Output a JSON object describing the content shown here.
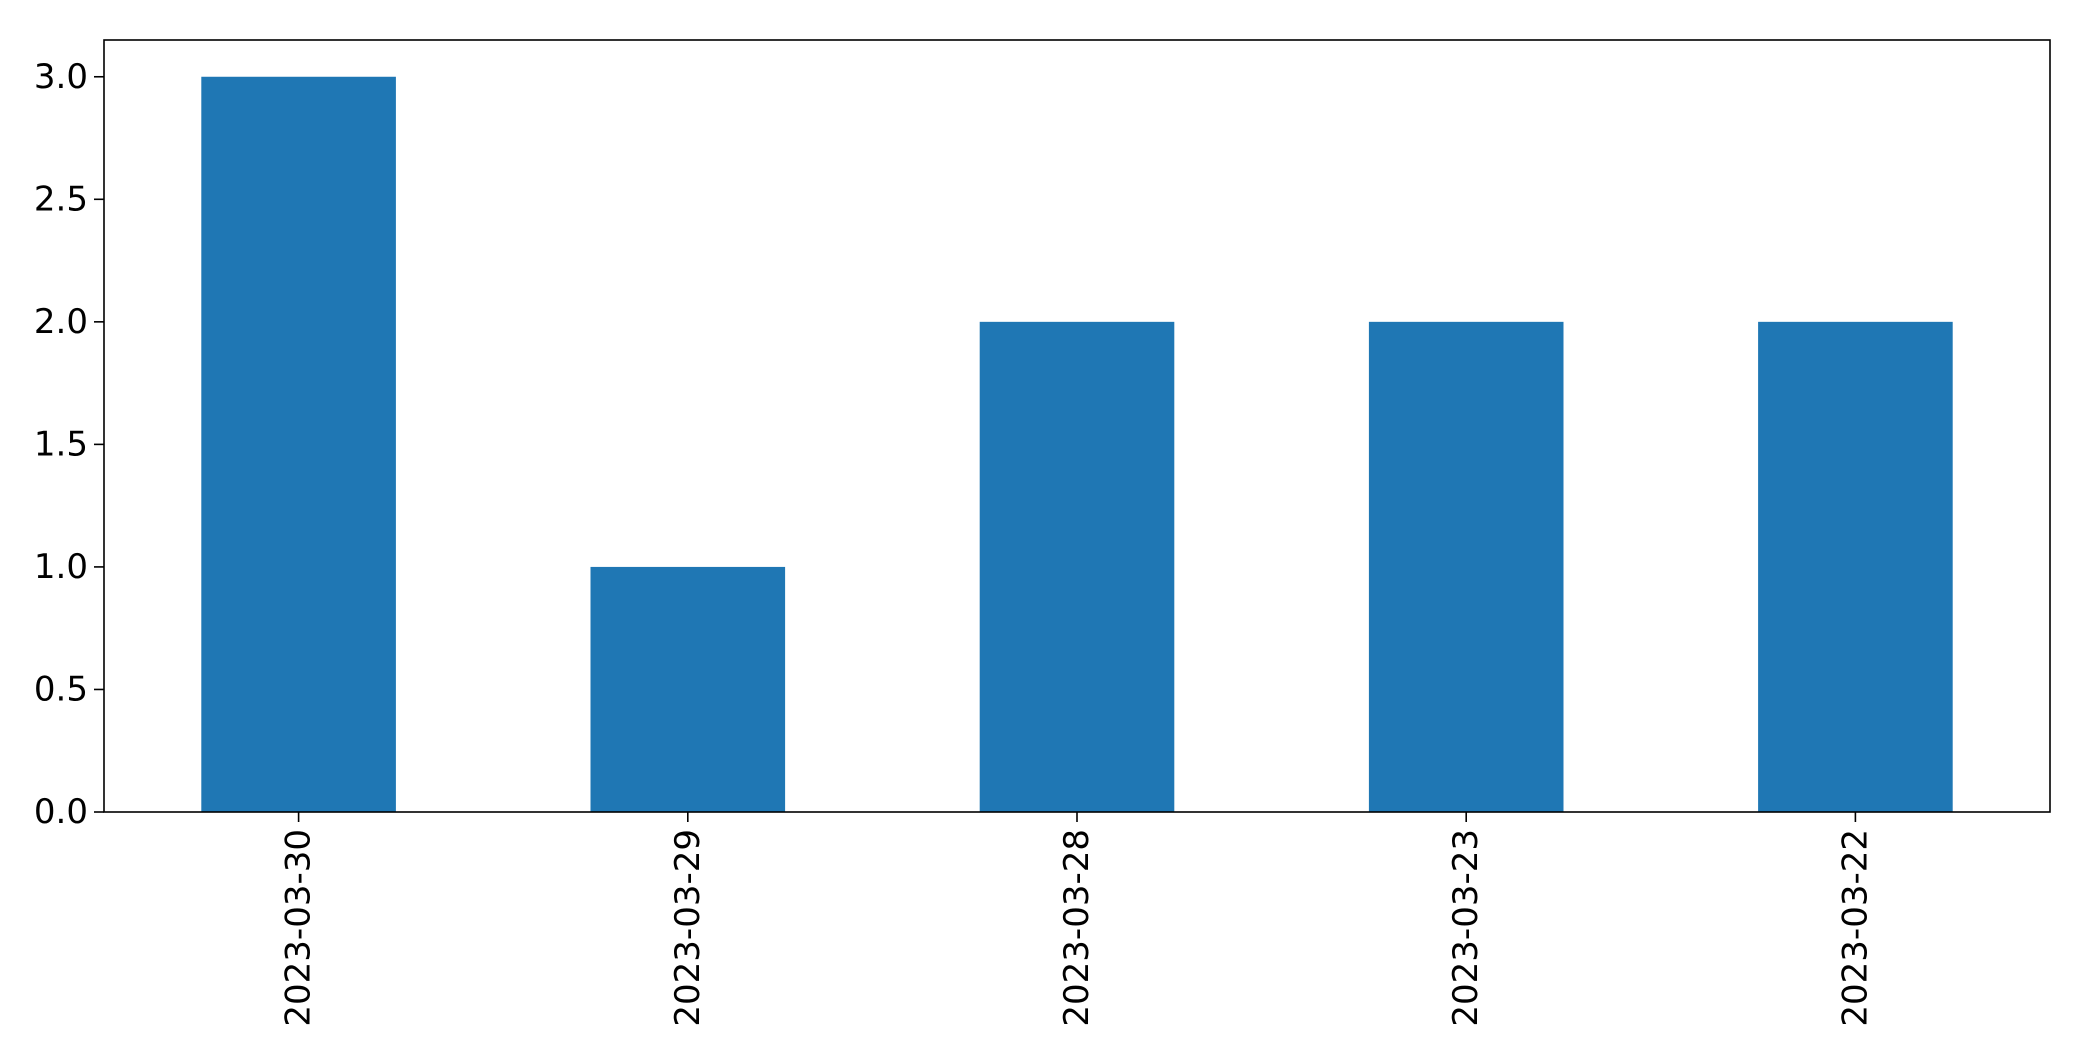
{
  "chart_data": {
    "type": "bar",
    "title": "",
    "xlabel": "",
    "ylabel": "",
    "categories": [
      "2023-03-30",
      "2023-03-29",
      "2023-03-28",
      "2023-03-23",
      "2023-03-22"
    ],
    "values": [
      3,
      1,
      2,
      2,
      2
    ],
    "ylim": [
      0,
      3.15
    ],
    "yticks": [
      "0.0",
      "0.5",
      "1.0",
      "1.5",
      "2.0",
      "2.5",
      "3.0"
    ],
    "bar_color": "#1f77b4",
    "grid": false,
    "legend": false
  }
}
